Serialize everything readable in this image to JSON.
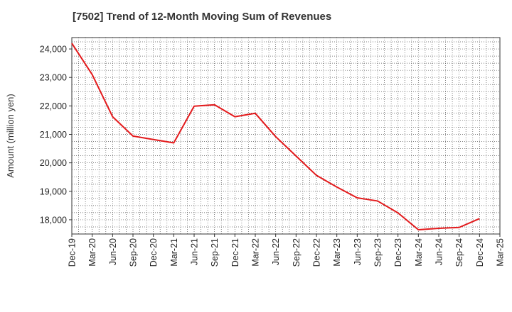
{
  "chart_data": {
    "type": "line",
    "title": "[7502]  Trend of 12-Month Moving Sum of Revenues",
    "xlabel": "",
    "ylabel": "Amount (million yen)",
    "ylim": [
      17500,
      24400
    ],
    "yticks": [
      18000,
      19000,
      20000,
      21000,
      22000,
      23000,
      24000
    ],
    "ytick_labels": [
      "18,000",
      "19,000",
      "20,000",
      "21,000",
      "22,000",
      "23,000",
      "24,000"
    ],
    "x_tick_labels": [
      "Dec-19",
      "Mar-20",
      "Jun-20",
      "Sep-20",
      "Dec-20",
      "Mar-21",
      "Jun-21",
      "Sep-21",
      "Dec-21",
      "Mar-22",
      "Jun-22",
      "Sep-22",
      "Dec-22",
      "Mar-23",
      "Jun-23",
      "Sep-23",
      "Dec-23",
      "Mar-24",
      "Jun-24",
      "Sep-24",
      "Dec-24",
      "Mar-25"
    ],
    "grid": true,
    "series": [
      {
        "name": "",
        "color": "#e31a1c",
        "x": [
          "Dec-19",
          "Mar-20",
          "Jun-20",
          "Sep-20",
          "Dec-20",
          "Mar-21",
          "Jun-21",
          "Sep-21",
          "Dec-21",
          "Mar-22",
          "Jun-22",
          "Sep-22",
          "Dec-22",
          "Mar-23",
          "Jun-23",
          "Sep-23",
          "Dec-23",
          "Mar-24",
          "Jun-24",
          "Sep-24",
          "Dec-24"
        ],
        "values": [
          24200,
          23100,
          21620,
          20940,
          20820,
          20700,
          21990,
          22040,
          21620,
          21740,
          20920,
          20240,
          19560,
          19150,
          18770,
          18660,
          18240,
          17650,
          17700,
          17730,
          18040
        ]
      }
    ]
  }
}
